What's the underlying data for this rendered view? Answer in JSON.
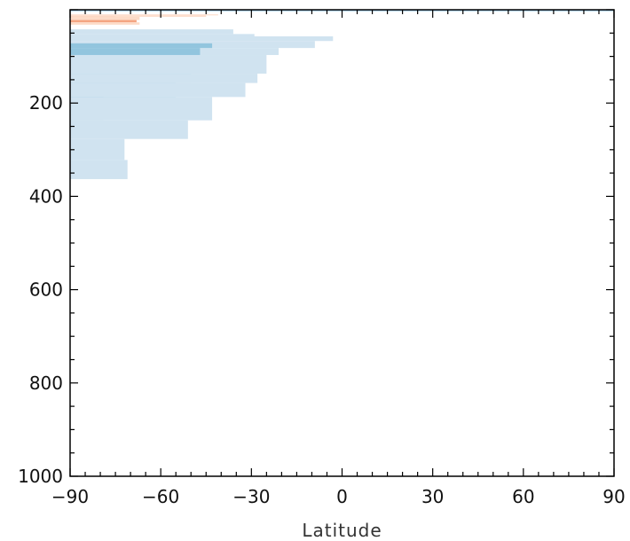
{
  "chart_data": {
    "type": "heatmap",
    "title": "",
    "xlabel": "Latitude",
    "ylabel": "",
    "xlim": [
      -90,
      90
    ],
    "ylim": [
      1000,
      0
    ],
    "y_inverted": true,
    "x_ticks": [
      -90,
      -60,
      -30,
      0,
      30,
      60,
      90
    ],
    "x_tick_labels": [
      "−90",
      "−60",
      "−30",
      "0",
      "30",
      "60",
      "90"
    ],
    "y_ticks": [
      200,
      400,
      600,
      800,
      1000
    ],
    "y_tick_labels": [
      "200",
      "400",
      "600",
      "800",
      "1000"
    ],
    "grid": false,
    "legend": null,
    "colors": {
      "light_blue": "#d0e3f0",
      "medium_blue": "#92c5de",
      "line_blue": "#8fc1e3",
      "light_orange": "#fddbc7",
      "medium_orange": "#f4a582"
    },
    "cells": [
      {
        "lat": [
          -90,
          90
        ],
        "depth": [
          0,
          3
        ],
        "color": "line_blue"
      },
      {
        "lat": [
          -90,
          -41
        ],
        "depth": [
          10,
          12
        ],
        "color": "light_orange"
      },
      {
        "lat": [
          -90,
          -45
        ],
        "depth": [
          12,
          15
        ],
        "color": "light_orange"
      },
      {
        "lat": [
          -90,
          -75
        ],
        "depth": [
          15,
          22
        ],
        "color": "medium_orange"
      },
      {
        "lat": [
          -90,
          -67
        ],
        "depth": [
          15,
          22
        ],
        "color": "light_orange"
      },
      {
        "lat": [
          -90,
          -68
        ],
        "depth": [
          22,
          27
        ],
        "color": "medium_orange"
      },
      {
        "lat": [
          -90,
          -67
        ],
        "depth": [
          27,
          32
        ],
        "color": "light_orange"
      },
      {
        "lat": [
          -90,
          -36
        ],
        "depth": [
          42,
          52
        ],
        "color": "light_blue"
      },
      {
        "lat": [
          -90,
          -29
        ],
        "depth": [
          52,
          57
        ],
        "color": "light_blue"
      },
      {
        "lat": [
          -90,
          -25
        ],
        "depth": [
          57,
          62
        ],
        "color": "light_blue"
      },
      {
        "lat": [
          -90,
          -3
        ],
        "depth": [
          57,
          67
        ],
        "color": "light_blue"
      },
      {
        "lat": [
          -90,
          -9
        ],
        "depth": [
          67,
          82
        ],
        "color": "light_blue"
      },
      {
        "lat": [
          -90,
          -21
        ],
        "depth": [
          82,
          97
        ],
        "color": "light_blue"
      },
      {
        "lat": [
          -90,
          -43
        ],
        "depth": [
          72,
          82
        ],
        "color": "medium_blue"
      },
      {
        "lat": [
          -90,
          -47
        ],
        "depth": [
          82,
          137
        ],
        "color": "medium_blue"
      },
      {
        "lat": [
          -90,
          -25
        ],
        "depth": [
          97,
          137
        ],
        "color": "light_blue"
      },
      {
        "lat": [
          -90,
          -50
        ],
        "depth": [
          137,
          157
        ],
        "color": "medium_blue"
      },
      {
        "lat": [
          -90,
          -28
        ],
        "depth": [
          137,
          157
        ],
        "color": "light_blue"
      },
      {
        "lat": [
          -90,
          -55
        ],
        "depth": [
          157,
          187
        ],
        "color": "medium_blue"
      },
      {
        "lat": [
          -90,
          -32
        ],
        "depth": [
          157,
          187
        ],
        "color": "light_blue"
      },
      {
        "lat": [
          -90,
          -79
        ],
        "depth": [
          187,
          237
        ],
        "color": "medium_blue"
      },
      {
        "lat": [
          -90,
          -43
        ],
        "depth": [
          187,
          237
        ],
        "color": "light_blue"
      },
      {
        "lat": [
          -90,
          -51
        ],
        "depth": [
          237,
          277
        ],
        "color": "light_blue"
      },
      {
        "lat": [
          -90,
          -72
        ],
        "depth": [
          277,
          322
        ],
        "color": "light_blue"
      },
      {
        "lat": [
          -90,
          -71
        ],
        "depth": [
          322,
          363
        ],
        "color": "light_blue"
      }
    ]
  }
}
